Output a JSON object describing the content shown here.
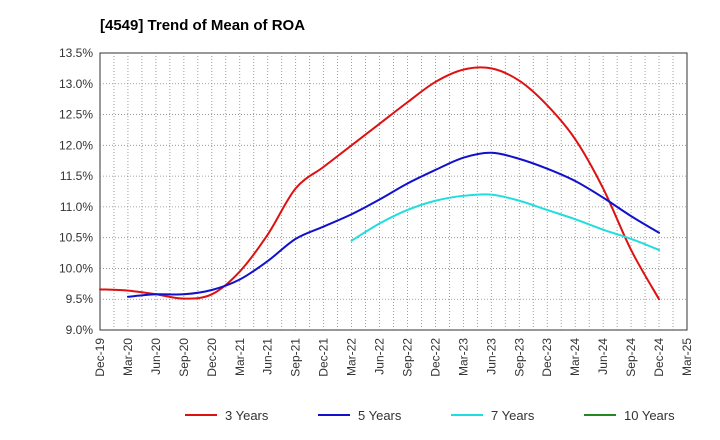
{
  "chart_data": {
    "type": "line",
    "title": "[4549]  Trend of Mean of ROA",
    "xlabel": "",
    "ylabel": "",
    "ylim": [
      9.0,
      13.5
    ],
    "yticks": [
      "9.0%",
      "9.5%",
      "10.0%",
      "10.5%",
      "11.0%",
      "11.5%",
      "12.0%",
      "12.5%",
      "13.0%",
      "13.5%"
    ],
    "ytick_values": [
      9.0,
      9.5,
      10.0,
      10.5,
      11.0,
      11.5,
      12.0,
      12.5,
      13.0,
      13.5
    ],
    "categories": [
      "Dec-19",
      "Mar-20",
      "Jun-20",
      "Sep-20",
      "Dec-20",
      "Mar-21",
      "Jun-21",
      "Sep-21",
      "Dec-21",
      "Mar-22",
      "Jun-22",
      "Sep-22",
      "Dec-22",
      "Mar-23",
      "Jun-23",
      "Sep-23",
      "Dec-23",
      "Mar-24",
      "Jun-24",
      "Sep-24",
      "Dec-24",
      "Mar-25"
    ],
    "grid": true,
    "legend_position": "bottom",
    "series": [
      {
        "name": "3 Years",
        "color": "#dd1111",
        "values": [
          9.66,
          9.64,
          9.58,
          9.51,
          9.58,
          9.95,
          10.55,
          11.3,
          11.65,
          12.0,
          12.35,
          12.7,
          13.03,
          13.23,
          13.25,
          13.05,
          12.65,
          12.1,
          11.3,
          10.3,
          9.5,
          null
        ]
      },
      {
        "name": "5 Years",
        "color": "#1111cc",
        "values": [
          null,
          9.54,
          9.58,
          9.58,
          9.65,
          9.82,
          10.12,
          10.48,
          10.68,
          10.88,
          11.12,
          11.38,
          11.6,
          11.8,
          11.88,
          11.78,
          11.62,
          11.42,
          11.15,
          10.85,
          10.58,
          null
        ]
      },
      {
        "name": "7 Years",
        "color": "#22dddd",
        "values": [
          null,
          null,
          null,
          null,
          null,
          null,
          null,
          null,
          null,
          10.45,
          10.73,
          10.95,
          11.1,
          11.18,
          11.2,
          11.1,
          10.95,
          10.8,
          10.63,
          10.48,
          10.3,
          null
        ]
      },
      {
        "name": "10 Years",
        "color": "#228822",
        "values": [
          null,
          null,
          null,
          null,
          null,
          null,
          null,
          null,
          null,
          null,
          null,
          null,
          null,
          null,
          null,
          null,
          null,
          null,
          null,
          null,
          null,
          null
        ]
      }
    ]
  }
}
